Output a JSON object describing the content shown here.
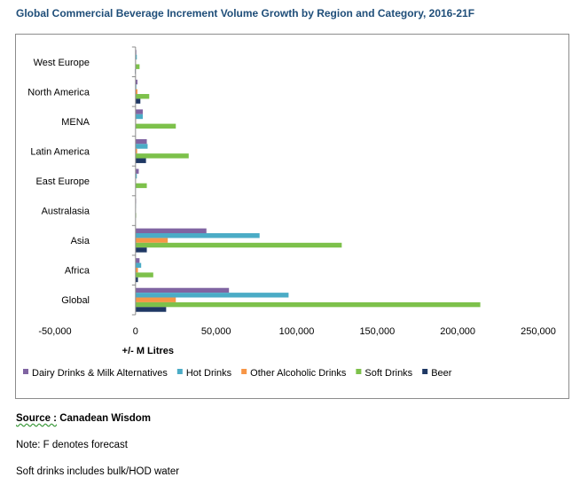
{
  "chart_data": {
    "type": "bar",
    "orientation": "horizontal",
    "title": "Global Commercial Beverage Increment Volume Growth by Region and Category, 2016-21F",
    "xlabel": "+/- M Litres",
    "ylabel": "",
    "categories": [
      "West Europe",
      "North America",
      "MENA",
      "Latin America",
      "East Europe",
      "Australasia",
      "Asia",
      "Africa",
      "Global"
    ],
    "xlim": [
      -50000,
      250000
    ],
    "xticks": [
      -50000,
      0,
      50000,
      100000,
      150000,
      200000,
      250000
    ],
    "xtick_labels": [
      "-50,000",
      "0",
      "50,000",
      "100,000",
      "150,000",
      "200,000",
      "250,000"
    ],
    "grid": false,
    "legend_position": "bottom",
    "series": [
      {
        "name": "Dairy Drinks & Milk Alternatives",
        "color": "#8064a2",
        "values": [
          500,
          1200,
          4500,
          7000,
          2000,
          300,
          44000,
          2500,
          58000
        ]
      },
      {
        "name": "Hot Drinks",
        "color": "#4bacc6",
        "values": [
          800,
          500,
          4500,
          7500,
          800,
          200,
          77000,
          3500,
          95000
        ]
      },
      {
        "name": "Other Alcoholic Drinks",
        "color": "#f79646",
        "values": [
          200,
          1200,
          300,
          1000,
          200,
          0,
          20000,
          1500,
          25000
        ]
      },
      {
        "name": "Soft Drinks",
        "color": "#7dc14b",
        "values": [
          2500,
          8500,
          25000,
          33000,
          7000,
          400,
          128000,
          11000,
          214000
        ]
      },
      {
        "name": "Beer",
        "color": "#1f3864",
        "values": [
          -300,
          3000,
          0,
          6500,
          0,
          0,
          7000,
          1500,
          19000
        ]
      }
    ]
  },
  "footer": {
    "source_label": "Source :",
    "source_value": "Canadean Wisdom",
    "note_1": "Note: F denotes forecast",
    "note_2": "Soft drinks includes bulk/HOD water"
  }
}
